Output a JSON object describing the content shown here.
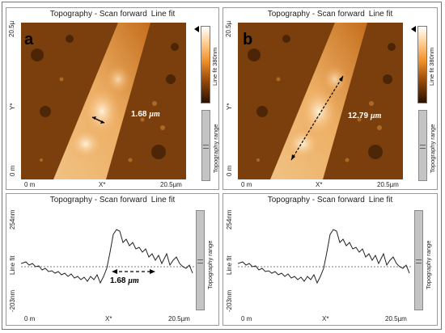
{
  "panels": {
    "a_image": {
      "title_part1": "Topography - Scan forward",
      "title_part2": "Line fit",
      "letter": "a",
      "y_top": "20.5µ",
      "y_mid": "Y*",
      "y_bottom": "0 m",
      "x_left": "0 m",
      "x_mid": "X*",
      "x_right": "20.5µm",
      "colorbar_label": "Line fit 380nm",
      "range_label": "Topography range",
      "measure_value": "1.68",
      "measure_unit": "µm"
    },
    "b_image": {
      "title_part1": "Topography - Scan forward",
      "title_part2": "Line fit",
      "letter": "b",
      "y_top": "20.5µ",
      "y_mid": "Y*",
      "y_bottom": "0 m",
      "x_left": "0 m",
      "x_mid": "X*",
      "x_right": "20.5µm",
      "colorbar_label": "Line fit 380nm",
      "range_label": "Topography range",
      "measure_value": "12.79",
      "measure_unit": "µm"
    },
    "a_profile": {
      "title_part1": "Topography - Scan forward",
      "title_part2": "Line fit",
      "y_top": "254nm",
      "y_mid": "Line fit",
      "y_bottom": "-203nm",
      "x_left": "0 m",
      "x_mid": "X*",
      "x_right": "20.5µm",
      "range_label": "Topography range",
      "measure_value": "1.68",
      "measure_unit": "µm"
    },
    "b_profile": {
      "title_part1": "Topography - Scan forward",
      "title_part2": "Line fit",
      "y_top": "254nm",
      "y_mid": "Line fit",
      "y_bottom": "-203nm",
      "x_left": "0 m",
      "x_mid": "X*",
      "x_right": "20.5µm",
      "range_label": "Topography range"
    }
  },
  "colors": {
    "afm_bright": "#f8d7a8",
    "afm_mid": "#d27a22",
    "afm_dark": "#3a1a03",
    "profile_line": "#222222",
    "range_marker": "#cc3333"
  }
}
